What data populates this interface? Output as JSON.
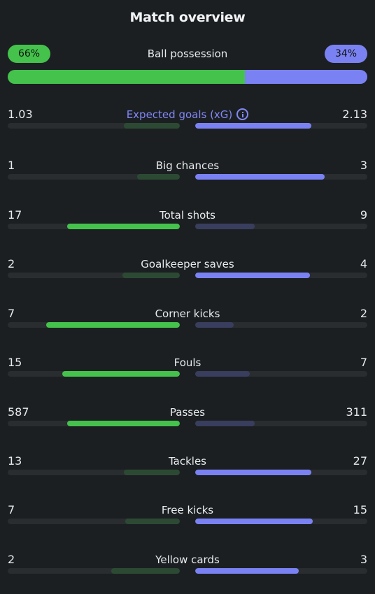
{
  "title": "Match overview",
  "colors": {
    "home_strong": "#44c24c",
    "home_weak": "#2c4a33",
    "away_strong": "#7a82f3",
    "away_weak": "#393e5e"
  },
  "possession": {
    "label": "Ball possession",
    "home_text": "66%",
    "away_text": "34%",
    "home_pct": 66,
    "away_pct": 34
  },
  "stats": [
    {
      "label": "Expected goals (xG)",
      "home": "1.03",
      "away": "2.13",
      "home_value": 1.03,
      "away_value": 2.13,
      "accent": true,
      "icon": "info-icon"
    },
    {
      "label": "Big chances",
      "home": "1",
      "away": "3",
      "home_value": 1,
      "away_value": 3
    },
    {
      "label": "Total shots",
      "home": "17",
      "away": "9",
      "home_value": 17,
      "away_value": 9
    },
    {
      "label": "Goalkeeper saves",
      "home": "2",
      "away": "4",
      "home_value": 2,
      "away_value": 4
    },
    {
      "label": "Corner kicks",
      "home": "7",
      "away": "2",
      "home_value": 7,
      "away_value": 2
    },
    {
      "label": "Fouls",
      "home": "15",
      "away": "7",
      "home_value": 15,
      "away_value": 7
    },
    {
      "label": "Passes",
      "home": "587",
      "away": "311",
      "home_value": 587,
      "away_value": 311
    },
    {
      "label": "Tackles",
      "home": "13",
      "away": "27",
      "home_value": 13,
      "away_value": 27
    },
    {
      "label": "Free kicks",
      "home": "7",
      "away": "15",
      "home_value": 7,
      "away_value": 15
    },
    {
      "label": "Yellow cards",
      "home": "2",
      "away": "3",
      "home_value": 2,
      "away_value": 3
    }
  ]
}
